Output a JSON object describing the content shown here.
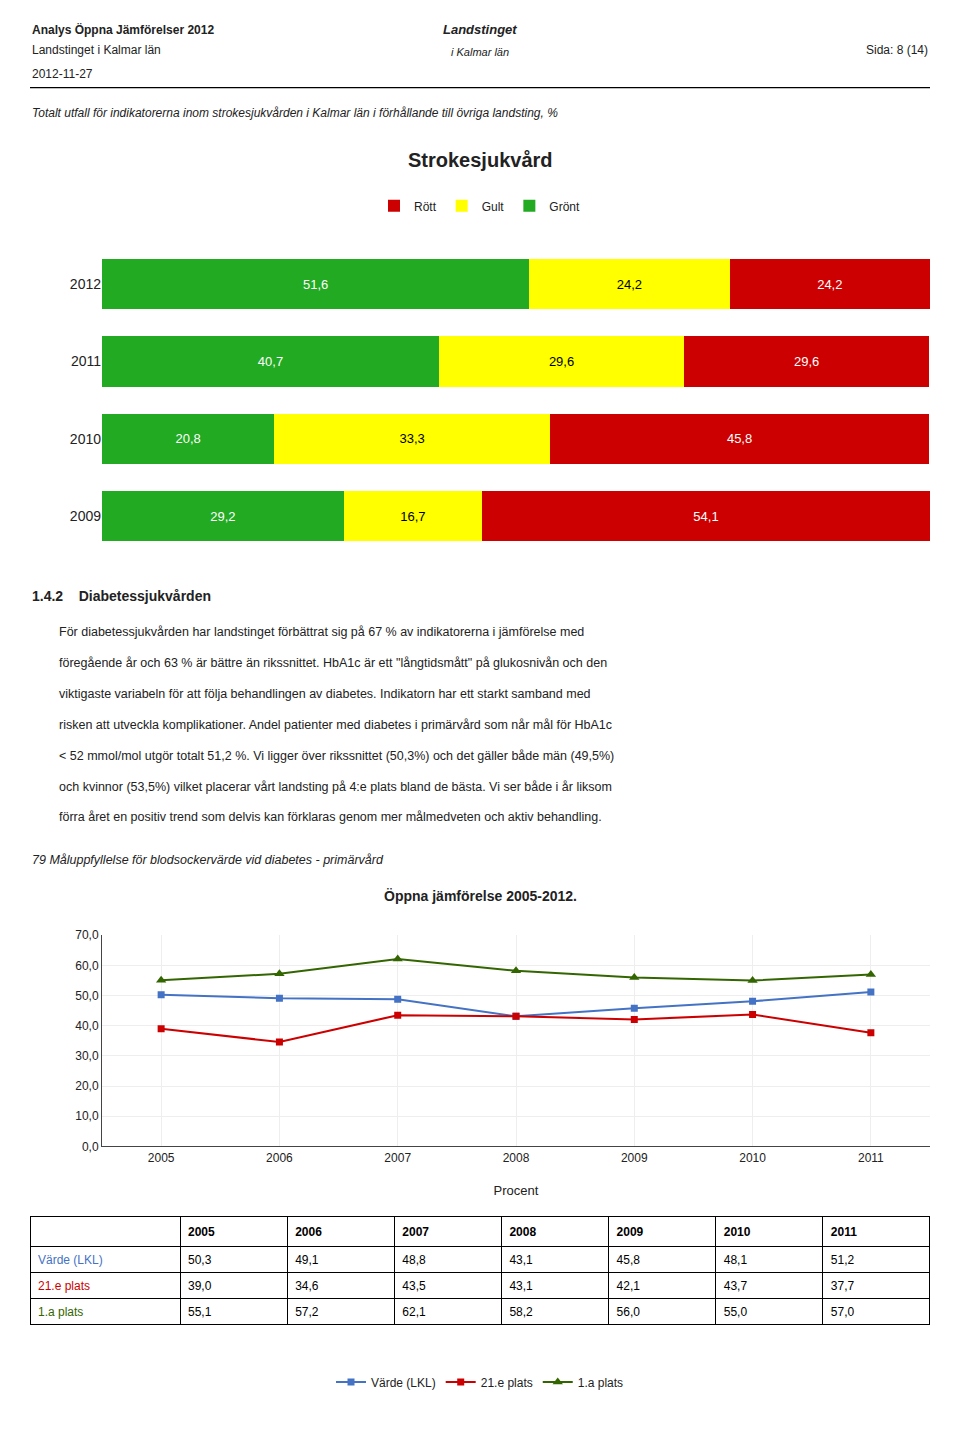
{
  "chart_data": [
    {
      "type": "bar",
      "orientation": "horizontal",
      "stacked": true,
      "data_labels": true,
      "tick_labels": "y",
      "grid": false,
      "legend": "top",
      "title": "Strokesjukvård",
      "subtitle": "Totalt utfall för indikatorerna inom strokesjukvården i Kalmar län i förhållande till övriga landsting, %",
      "annotations": [
        "Analys Öppna Jämförelser 2012",
        "Landstinget i Kalmar län",
        "2012-11-27",
        "Sida: 8 (14)",
        "Landstinget",
        "i Kalmar län"
      ],
      "categories": [
        "2012",
        "2011",
        "2010",
        "2009"
      ],
      "xlim": [
        0,
        100
      ],
      "series": [
        {
          "name": "Grönt",
          "color": "#22aa22",
          "values": [
            51.6,
            40.7,
            20.8,
            29.2
          ],
          "value_labels": [
            "51,6",
            "40,7",
            "20,8",
            "29,2"
          ]
        },
        {
          "name": "Gult",
          "color": "#ffff00",
          "values": [
            24.2,
            29.6,
            33.3,
            16.7
          ],
          "value_labels": [
            "24,2",
            "29,6",
            "33,3",
            "16,7"
          ]
        },
        {
          "name": "Rött",
          "color": "#cc0000",
          "values": [
            24.2,
            29.6,
            45.8,
            54.1
          ],
          "value_labels": [
            "24,2",
            "29,6",
            "45,8",
            "54,1"
          ]
        }
      ]
    },
    {
      "type": "line",
      "grid": true,
      "legend": "bottom",
      "title": "Öppna jämförelse 2005-2012.",
      "subtitle": "79 Måluppfyllelse för blodsockervärde vid diabetes - primärvård",
      "annotations": [
        "1.4.2    Diabetessjukvården",
        "För diabetessjukvården har landstinget förbättrat sig på 67 % av indikatorerna i jämförelse med",
        "föregående år och 63 % är bättre än rikssnittet. HbA1c är ett \"långtidsmått\" på glukosnivån och den",
        "viktigaste variabeln för att följa behandlingen av diabetes. Indikatorn har ett starkt samband med",
        "risken att utveckla komplikationer. Andel patienter med diabetes i primärvård som når mål för HbA1c",
        "< 52 mmol/mol utgör totalt 51,2 %. Vi ligger över rikssnittet (50,3%) och det gäller både män (49,5%)",
        "och kvinnor (53,5%) vilket placerar vårt landsting på 4:e plats bland de bästa. Vi ser både i år liksom",
        "förra året en positiv trend som delvis kan förklaras genom mer målmedveten och aktiv behandling."
      ],
      "xlabel": "Procent",
      "x": [
        2005,
        2006,
        2007,
        2008,
        2009,
        2010,
        2011
      ],
      "xlim": [
        2004.5,
        2011.5
      ],
      "xticks": [
        2005,
        2006,
        2007,
        2008,
        2009,
        2010,
        2011
      ],
      "ylim": [
        0,
        70
      ],
      "yticks": [
        {
          "value": 0,
          "label": "0,0"
        },
        {
          "value": 10,
          "label": "10,0"
        },
        {
          "value": 20,
          "label": "20,0"
        },
        {
          "value": 30,
          "label": "30,0"
        },
        {
          "value": 40,
          "label": "40,0"
        },
        {
          "value": 50,
          "label": "50,0"
        },
        {
          "value": 60,
          "label": "60,0"
        },
        {
          "value": 70,
          "label": "70,0"
        }
      ],
      "series": [
        {
          "name": "Värde (LKL)",
          "color": "#4472c4",
          "marker": "square",
          "values": [
            50.3,
            49.1,
            48.8,
            43.1,
            45.8,
            48.1,
            51.2
          ]
        },
        {
          "name": "21.e plats",
          "color": "#cc0000",
          "marker": "square",
          "values": [
            39.0,
            34.6,
            43.5,
            43.1,
            42.1,
            43.7,
            37.7
          ]
        },
        {
          "name": "1.a plats",
          "color": "#336600",
          "marker": "triangle",
          "values": [
            55.1,
            57.2,
            62.1,
            58.2,
            56.0,
            55.0,
            57.0
          ]
        }
      ],
      "table": {
        "columns": [
          "",
          "2005",
          "2006",
          "2007",
          "2008",
          "2009",
          "2010",
          "2011"
        ],
        "rows": [
          [
            "Värde (LKL)",
            "50,3",
            "49,1",
            "48,8",
            "43,1",
            "45,8",
            "48,1",
            "51,2"
          ],
          [
            "21.e plats",
            "39,0",
            "34,6",
            "43,5",
            "43,1",
            "42,1",
            "43,7",
            "37,7"
          ],
          [
            "1.a plats",
            "55,1",
            "57,2",
            "62,1",
            "58,2",
            "56,0",
            "55,0",
            "57,0"
          ]
        ]
      }
    }
  ]
}
